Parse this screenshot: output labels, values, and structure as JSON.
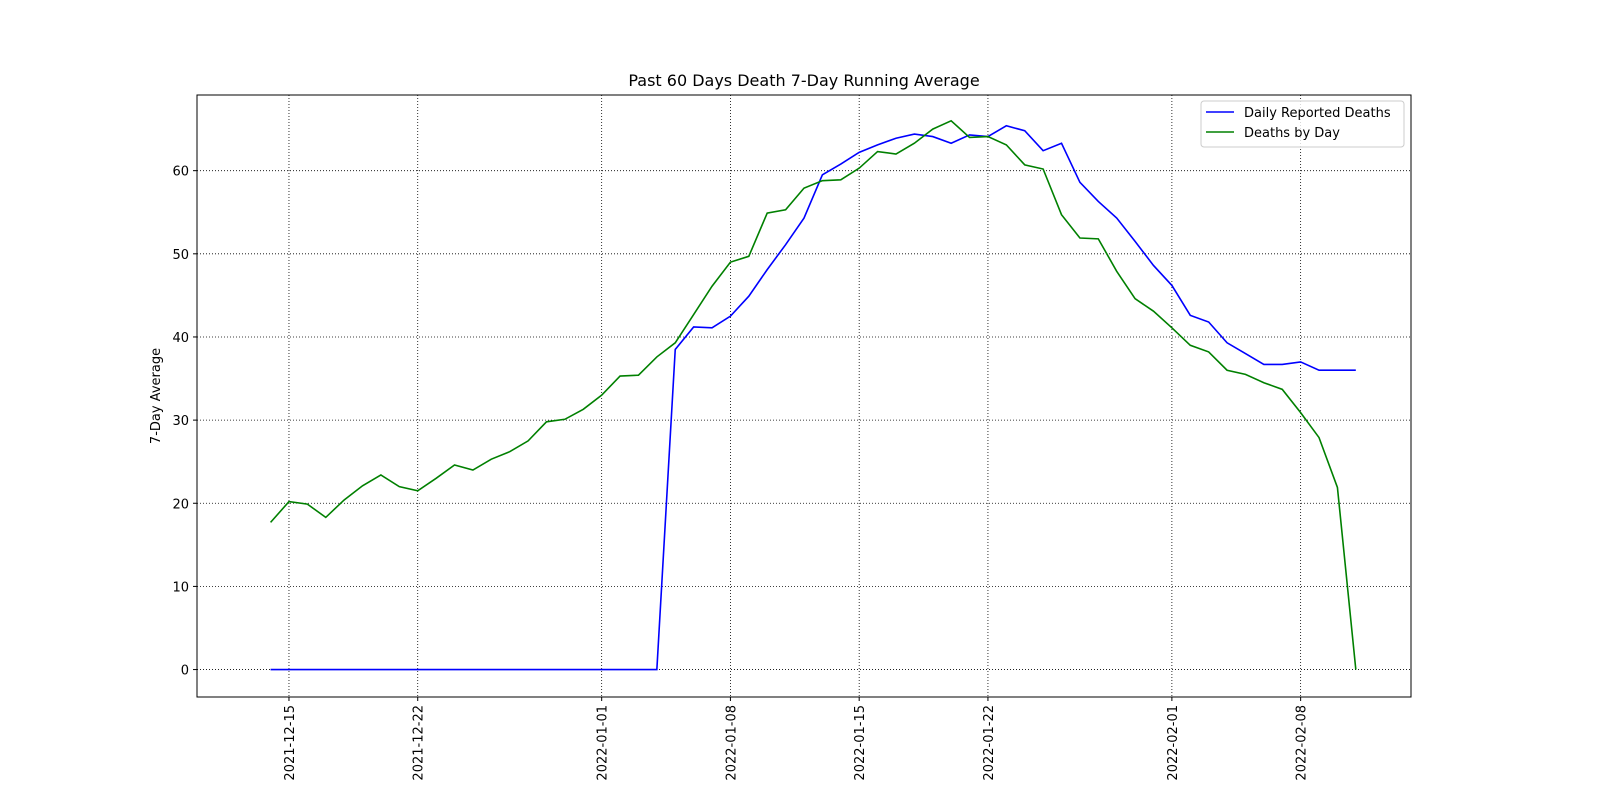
{
  "chart_data": {
    "type": "line",
    "title": "Past 60 Days Death 7-Day Running Average",
    "y_label": "7-Day Average",
    "x": [
      "2021-12-14",
      "2021-12-15",
      "2021-12-16",
      "2021-12-17",
      "2021-12-18",
      "2021-12-19",
      "2021-12-20",
      "2021-12-21",
      "2021-12-22",
      "2021-12-23",
      "2021-12-24",
      "2021-12-25",
      "2021-12-26",
      "2021-12-27",
      "2021-12-28",
      "2021-12-29",
      "2021-12-30",
      "2021-12-31",
      "2022-01-01",
      "2022-01-02",
      "2022-01-03",
      "2022-01-04",
      "2022-01-05",
      "2022-01-06",
      "2022-01-07",
      "2022-01-08",
      "2022-01-09",
      "2022-01-10",
      "2022-01-11",
      "2022-01-12",
      "2022-01-13",
      "2022-01-14",
      "2022-01-15",
      "2022-01-16",
      "2022-01-17",
      "2022-01-18",
      "2022-01-19",
      "2022-01-20",
      "2022-01-21",
      "2022-01-22",
      "2022-01-23",
      "2022-01-24",
      "2022-01-25",
      "2022-01-26",
      "2022-01-27",
      "2022-01-28",
      "2022-01-29",
      "2022-01-30",
      "2022-01-31",
      "2022-02-01",
      "2022-02-02",
      "2022-02-03",
      "2022-02-04",
      "2022-02-05",
      "2022-02-06",
      "2022-02-07",
      "2022-02-08",
      "2022-02-09",
      "2022-02-10",
      "2022-02-11"
    ],
    "series": [
      {
        "name": "Daily Reported Deaths",
        "color": "#0000ff",
        "values": [
          0,
          0,
          0,
          0,
          0,
          0,
          0,
          0,
          0,
          0,
          0,
          0,
          0,
          0,
          0,
          0,
          0,
          0,
          0,
          0,
          0,
          0,
          38.5,
          41.2,
          41.1,
          42.5,
          44.9,
          48.1,
          51.1,
          54.3,
          59.5,
          60.8,
          62.2,
          63.1,
          63.9,
          64.4,
          64.1,
          63.3,
          64.3,
          64.1,
          65.4,
          64.8,
          62.4,
          63.3,
          58.6,
          56.3,
          54.3,
          51.5,
          48.6,
          46.2,
          42.6,
          41.8,
          39.3,
          38.0,
          36.7,
          36.7,
          37.0,
          36.0,
          36.0,
          36.0
        ]
      },
      {
        "name": "Deaths by Day",
        "color": "#008000",
        "values": [
          17.7,
          20.2,
          19.9,
          18.3,
          20.4,
          22.1,
          23.4,
          22.0,
          21.5,
          23.0,
          24.6,
          24.0,
          25.3,
          26.2,
          27.5,
          29.8,
          30.1,
          31.3,
          33.0,
          35.3,
          35.4,
          37.6,
          39.3,
          42.7,
          46.1,
          49.0,
          49.7,
          54.9,
          55.3,
          57.9,
          58.8,
          58.9,
          60.3,
          62.3,
          62.0,
          63.3,
          65.0,
          66.0,
          64.0,
          64.1,
          63.1,
          60.7,
          60.2,
          54.7,
          51.9,
          51.8,
          47.9,
          44.6,
          43.1,
          41.1,
          39.0,
          38.2,
          36.0,
          35.5,
          34.5,
          33.7,
          30.9,
          27.9,
          21.9,
          0
        ]
      }
    ],
    "xlim": [
      "2021-12-10",
      "2022-02-14"
    ],
    "xticks": [
      "2021-12-15",
      "2021-12-22",
      "2022-01-01",
      "2022-01-08",
      "2022-01-15",
      "2022-01-22",
      "2022-02-01",
      "2022-02-08"
    ],
    "ylim": [
      -3.3,
      69.1
    ],
    "yticks": [
      0,
      10,
      20,
      30,
      40,
      50,
      60
    ],
    "grid": true,
    "legend": "upper right"
  }
}
